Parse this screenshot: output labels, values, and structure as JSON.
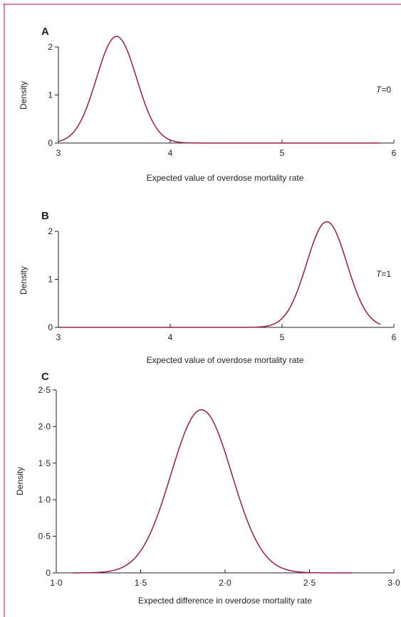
{
  "colors": {
    "curve": "#9b1b4a",
    "frame": "#b5124f",
    "axis": "#231f20"
  },
  "chart_data": [
    {
      "type": "line",
      "panel": "A",
      "annotation": "T=0",
      "xlabel": "Expected value of overdose mortality rate",
      "ylabel": "Density",
      "xlim": [
        3,
        6
      ],
      "ylim": [
        0,
        2.2
      ],
      "xticks": [
        "3",
        "4",
        "5",
        "6"
      ],
      "yticks": [
        "0",
        "1",
        "2"
      ],
      "xtick_values": [
        3,
        4,
        5,
        6
      ],
      "ytick_values": [
        0,
        1,
        2
      ],
      "series": [
        {
          "shape": "normal",
          "mean": 3.52,
          "sd": 0.18,
          "peak": 2.22,
          "range": [
            3.0,
            5.88
          ]
        }
      ]
    },
    {
      "type": "line",
      "panel": "B",
      "annotation": "T=1",
      "xlabel": "Expected value of overdose mortality rate",
      "ylabel": "Density",
      "xlim": [
        3,
        6
      ],
      "ylim": [
        0,
        2.2
      ],
      "xticks": [
        "3",
        "4",
        "5",
        "6"
      ],
      "yticks": [
        "0",
        "1",
        "2"
      ],
      "xtick_values": [
        3,
        4,
        5,
        6
      ],
      "ytick_values": [
        0,
        1,
        2
      ],
      "series": [
        {
          "shape": "normal",
          "mean": 5.4,
          "sd": 0.18,
          "peak": 2.2,
          "range": [
            3.0,
            5.88
          ]
        }
      ]
    },
    {
      "type": "line",
      "panel": "C",
      "annotation": "",
      "xlabel": "Expected difference in overdose mortality rate",
      "ylabel": "Density",
      "xlim": [
        1.0,
        3.0
      ],
      "ylim": [
        0,
        2.5
      ],
      "xticks": [
        "1·0",
        "1·5",
        "2·0",
        "2·5",
        "3·0"
      ],
      "yticks": [
        "0",
        "0·5",
        "1·0",
        "1·5",
        "2·0",
        "2·5"
      ],
      "xtick_values": [
        1.0,
        1.5,
        2.0,
        2.5,
        3.0
      ],
      "ytick_values": [
        0,
        0.5,
        1.0,
        1.5,
        2.0,
        2.5
      ],
      "series": [
        {
          "shape": "normal",
          "mean": 1.86,
          "sd": 0.18,
          "peak": 2.23,
          "range": [
            1.1,
            2.75
          ]
        }
      ]
    }
  ]
}
